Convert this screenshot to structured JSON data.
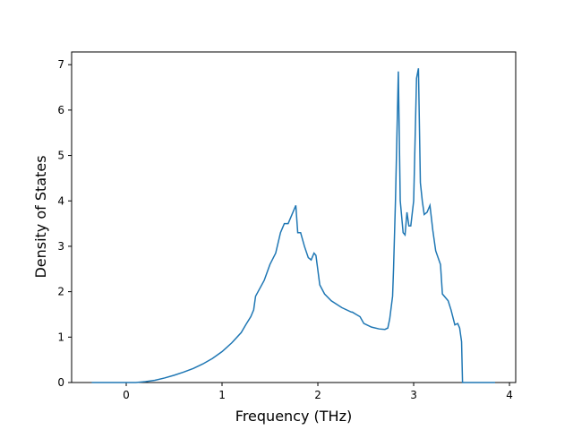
{
  "chart_data": {
    "type": "line",
    "xlabel": "Frequency (THz)",
    "ylabel": "Density of States",
    "x": [
      -0.36,
      0.0,
      0.1,
      0.2,
      0.3,
      0.4,
      0.5,
      0.6,
      0.7,
      0.8,
      0.9,
      1.0,
      1.1,
      1.2,
      1.25,
      1.3,
      1.33,
      1.35,
      1.44,
      1.5,
      1.56,
      1.61,
      1.65,
      1.69,
      1.73,
      1.77,
      1.79,
      1.82,
      1.86,
      1.9,
      1.93,
      1.96,
      1.98,
      2.02,
      2.07,
      2.14,
      2.25,
      2.35,
      2.36,
      2.4,
      2.44,
      2.48,
      2.56,
      2.64,
      2.7,
      2.73,
      2.75,
      2.78,
      2.79,
      2.81,
      2.84,
      2.86,
      2.89,
      2.91,
      2.93,
      2.95,
      2.97,
      3.0,
      3.03,
      3.05,
      3.07,
      3.09,
      3.11,
      3.14,
      3.17,
      3.2,
      3.23,
      3.28,
      3.3,
      3.36,
      3.39,
      3.43,
      3.46,
      3.48,
      3.5,
      3.51,
      3.85
    ],
    "series": [
      {
        "name": "DOS",
        "color": "#1f77b4",
        "values": [
          0,
          0,
          0,
          0.02,
          0.05,
          0.1,
          0.16,
          0.23,
          0.31,
          0.41,
          0.53,
          0.68,
          0.87,
          1.1,
          1.28,
          1.45,
          1.6,
          1.9,
          2.25,
          2.6,
          2.85,
          3.3,
          3.5,
          3.5,
          3.7,
          3.9,
          3.3,
          3.3,
          3.0,
          2.75,
          2.7,
          2.85,
          2.8,
          2.15,
          1.95,
          1.8,
          1.65,
          1.55,
          1.55,
          1.5,
          1.45,
          1.3,
          1.22,
          1.18,
          1.17,
          1.2,
          1.4,
          1.9,
          2.5,
          4.0,
          6.85,
          4.0,
          3.3,
          3.25,
          3.75,
          3.45,
          3.45,
          4.0,
          6.7,
          6.92,
          4.4,
          4.0,
          3.7,
          3.75,
          3.9,
          3.35,
          2.9,
          2.6,
          1.95,
          1.8,
          1.6,
          1.27,
          1.3,
          1.2,
          0.9,
          0,
          0
        ]
      }
    ],
    "xlim": [
      -0.57,
      4.065
    ],
    "ylim": [
      0,
      7.28
    ],
    "xticks": [
      0,
      1,
      2,
      3,
      4
    ],
    "yticks": [
      0,
      1,
      2,
      3,
      4,
      5,
      6,
      7
    ]
  }
}
